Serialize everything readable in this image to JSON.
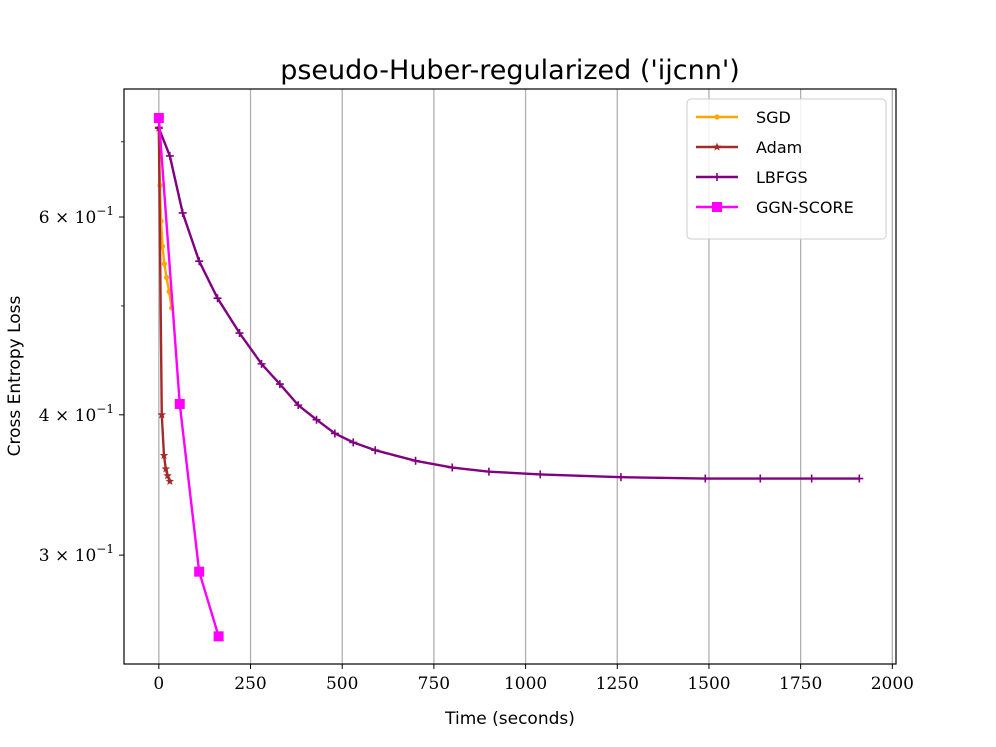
{
  "chart_data": {
    "type": "line",
    "title": "pseudo-Huber-regularized ('ijcnn')",
    "xlabel": "Time (seconds)",
    "ylabel": "Cross Entropy Loss",
    "xlim": [
      -95,
      2010
    ],
    "ylim": [
      0.24,
      0.78
    ],
    "yscale": "log",
    "grid": "x-major",
    "legend_position": "top-right",
    "x_ticks": [
      {
        "value": 0,
        "label": "0"
      },
      {
        "value": 250,
        "label": "250"
      },
      {
        "value": 500,
        "label": "500"
      },
      {
        "value": 750,
        "label": "750"
      },
      {
        "value": 1000,
        "label": "1000"
      },
      {
        "value": 1250,
        "label": "1250"
      },
      {
        "value": 1500,
        "label": "1500"
      },
      {
        "value": 1750,
        "label": "1750"
      },
      {
        "value": 2000,
        "label": "2000"
      }
    ],
    "y_ticks": [
      {
        "value": 0.3,
        "base": "3",
        "exp": "−1"
      },
      {
        "value": 0.4,
        "base": "4",
        "exp": "−1"
      },
      {
        "value": 0.6,
        "base": "6",
        "exp": "−1"
      }
    ],
    "y_minor_ticks": [
      0.5,
      0.7
    ],
    "series": [
      {
        "name": "SGD",
        "color": "#FFA500",
        "marker": "circle",
        "x": [
          0,
          3,
          6,
          10,
          15,
          21,
          28,
          35
        ],
        "y": [
          0.72,
          0.64,
          0.595,
          0.565,
          0.545,
          0.53,
          0.515,
          0.498
        ]
      },
      {
        "name": "Adam",
        "color": "#A52A2A",
        "marker": "star",
        "x": [
          0,
          8,
          14,
          19,
          24,
          30
        ],
        "y": [
          0.72,
          0.4,
          0.368,
          0.358,
          0.353,
          0.349
        ]
      },
      {
        "name": "LBFGS",
        "color": "#800080",
        "marker": "plus",
        "x": [
          0,
          30,
          65,
          110,
          160,
          220,
          280,
          330,
          380,
          430,
          480,
          530,
          590,
          700,
          800,
          900,
          1040,
          1260,
          1490,
          1640,
          1780,
          1910
        ],
        "y": [
          0.72,
          0.68,
          0.605,
          0.548,
          0.508,
          0.473,
          0.444,
          0.426,
          0.408,
          0.396,
          0.385,
          0.378,
          0.372,
          0.364,
          0.359,
          0.356,
          0.354,
          0.352,
          0.351,
          0.351,
          0.351,
          0.351
        ]
      },
      {
        "name": "GGN-SCORE",
        "color": "#FF00FF",
        "marker": "square",
        "x": [
          0,
          57,
          110,
          163
        ],
        "y": [
          0.735,
          0.409,
          0.29,
          0.254
        ]
      }
    ]
  }
}
